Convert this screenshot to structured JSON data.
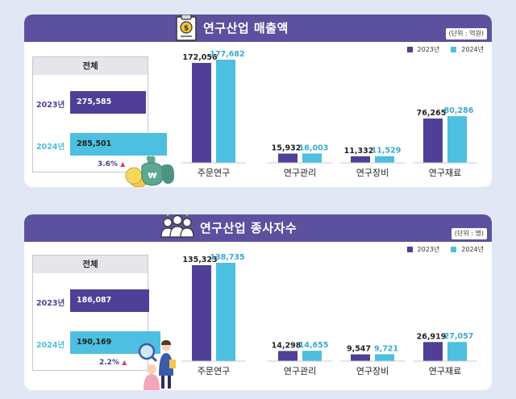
{
  "colors": {
    "y2023": "#4f3f97",
    "y2024": "#4dbfe0",
    "banner": "#5c519f",
    "increase": "#e23b5f"
  },
  "legend": {
    "y2023": "2023년",
    "y2024": "2024년"
  },
  "icons": [
    "clipboard-money-icon",
    "money-bags-icon",
    "workers-icon",
    "researchers-icon"
  ],
  "panels": [
    {
      "title": "연구산업 매출액",
      "unit": "(단위 : 억원)",
      "total": {
        "head": "전체",
        "y2023_label": "2023년",
        "y2023_value": "275,585",
        "y2024_label": "2024년",
        "y2024_value": "285,501",
        "change": "3.6%"
      }
    },
    {
      "title": "연구산업 종사자수",
      "unit": "(단위 : 명)",
      "total": {
        "head": "전체",
        "y2023_label": "2023년",
        "y2023_value": "186,087",
        "y2024_label": "2024년",
        "y2024_value": "190,169",
        "change": "2.2%"
      }
    }
  ],
  "chart_data": [
    {
      "type": "bar",
      "title": "연구산업 매출액",
      "categories": [
        "주문연구",
        "연구관리",
        "연구장비",
        "연구재료"
      ],
      "series": [
        {
          "name": "2023년",
          "values": [
            172056,
            15932,
            11332,
            76265
          ],
          "labels": [
            "172,056",
            "15,932",
            "11,332",
            "76,265"
          ]
        },
        {
          "name": "2024년",
          "values": [
            177682,
            16003,
            11529,
            80286
          ],
          "labels": [
            "177,682",
            "16,003",
            "11,529",
            "80,286"
          ]
        }
      ],
      "total": {
        "2023년": 275585,
        "2024년": 285501
      },
      "legend": "top-right",
      "grid": false
    },
    {
      "type": "bar",
      "title": "연구산업 종사자수",
      "categories": [
        "주문연구",
        "연구관리",
        "연구장비",
        "연구재료"
      ],
      "series": [
        {
          "name": "2023년",
          "values": [
            135323,
            14298,
            9547,
            26919
          ],
          "labels": [
            "135,323",
            "14,298",
            "9,547",
            "26,919"
          ]
        },
        {
          "name": "2024년",
          "values": [
            138735,
            14655,
            9721,
            27057
          ],
          "labels": [
            "138,735",
            "14,655",
            "9,721",
            "27,057"
          ]
        }
      ],
      "total": {
        "2023년": 186087,
        "2024년": 190169
      },
      "legend": "top-right",
      "grid": false
    }
  ]
}
